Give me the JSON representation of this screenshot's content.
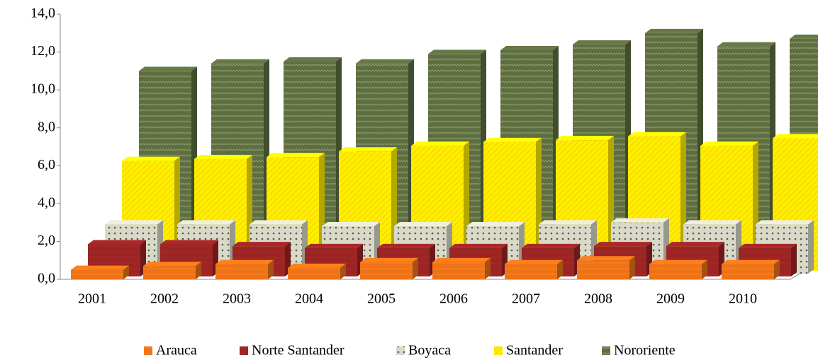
{
  "chart_data": {
    "type": "bar3d",
    "categories": [
      "2001",
      "2002",
      "2003",
      "2004",
      "2005",
      "2006",
      "2007",
      "2008",
      "2009",
      "2010"
    ],
    "series": [
      {
        "name": "Arauca",
        "color": "#ee7318",
        "values": [
          0.5,
          0.7,
          0.8,
          0.6,
          0.9,
          0.9,
          0.8,
          1.0,
          0.8,
          0.8
        ]
      },
      {
        "name": "Norte Santander",
        "color": "#9b2424",
        "values": [
          1.7,
          1.7,
          1.6,
          1.5,
          1.5,
          1.5,
          1.5,
          1.6,
          1.6,
          1.5
        ]
      },
      {
        "name": "Boyaca",
        "color": "#d9d9c8",
        "values": [
          2.6,
          2.6,
          2.6,
          2.5,
          2.5,
          2.5,
          2.6,
          2.7,
          2.6,
          2.6
        ]
      },
      {
        "name": "Santander",
        "color": "#ffee00",
        "values": [
          5.8,
          5.9,
          6.0,
          6.3,
          6.6,
          6.8,
          6.9,
          7.1,
          6.6,
          7.0
        ]
      },
      {
        "name": "Nororiente",
        "color": "#5e6e40",
        "values": [
          10.4,
          10.8,
          10.9,
          10.8,
          11.3,
          11.5,
          11.8,
          12.4,
          11.7,
          12.1
        ]
      }
    ],
    "ylim": [
      0,
      14
    ],
    "yticks": [
      {
        "value": 0,
        "label": "0,0"
      },
      {
        "value": 2,
        "label": "2,0"
      },
      {
        "value": 4,
        "label": "4,0"
      },
      {
        "value": 6,
        "label": "6,0"
      },
      {
        "value": 8,
        "label": "8,0"
      },
      {
        "value": 10,
        "label": "10,0"
      },
      {
        "value": 12,
        "label": "12,0"
      },
      {
        "value": 14,
        "label": "14,0"
      }
    ]
  }
}
